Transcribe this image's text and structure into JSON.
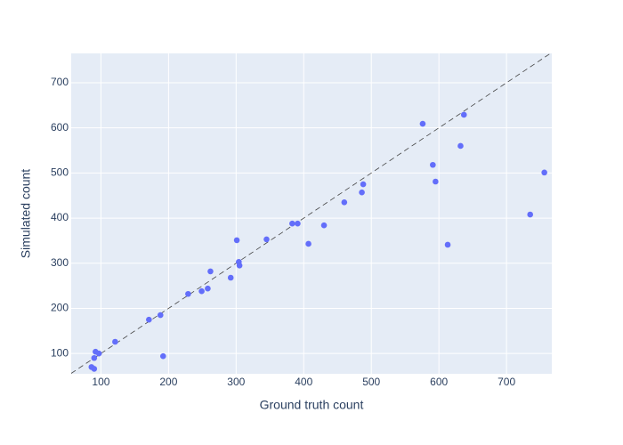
{
  "chart_data": {
    "type": "scatter",
    "x_label": "Ground truth count",
    "y_label": "Simulated count",
    "color": "#636efa",
    "background": "#e5ecf6",
    "grid": true,
    "xlim": [
      56,
      767
    ],
    "ylim": [
      55,
      765
    ],
    "xticks": [
      100,
      200,
      300,
      400,
      500,
      600,
      700
    ],
    "yticks": [
      100,
      200,
      300,
      400,
      500,
      600,
      700
    ],
    "x": [
      86,
      90,
      90,
      92,
      97,
      121,
      171,
      188,
      192,
      229,
      249,
      258,
      262,
      292,
      301,
      304,
      305,
      345,
      383,
      391,
      407,
      430,
      460,
      486,
      488,
      576,
      591,
      595,
      613,
      632,
      637,
      735,
      756
    ],
    "y": [
      70,
      66,
      90,
      104,
      100,
      126,
      175,
      185,
      94,
      232,
      238,
      244,
      282,
      268,
      351,
      303,
      295,
      353,
      388,
      388,
      343,
      384,
      435,
      457,
      475,
      609,
      518,
      481,
      341,
      560,
      629,
      408,
      501
    ]
  }
}
